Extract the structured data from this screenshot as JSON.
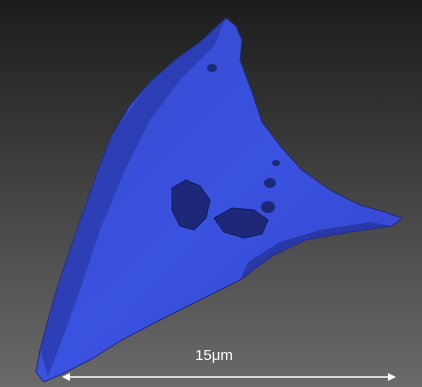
{
  "scale_bar": {
    "label": "15μm"
  }
}
